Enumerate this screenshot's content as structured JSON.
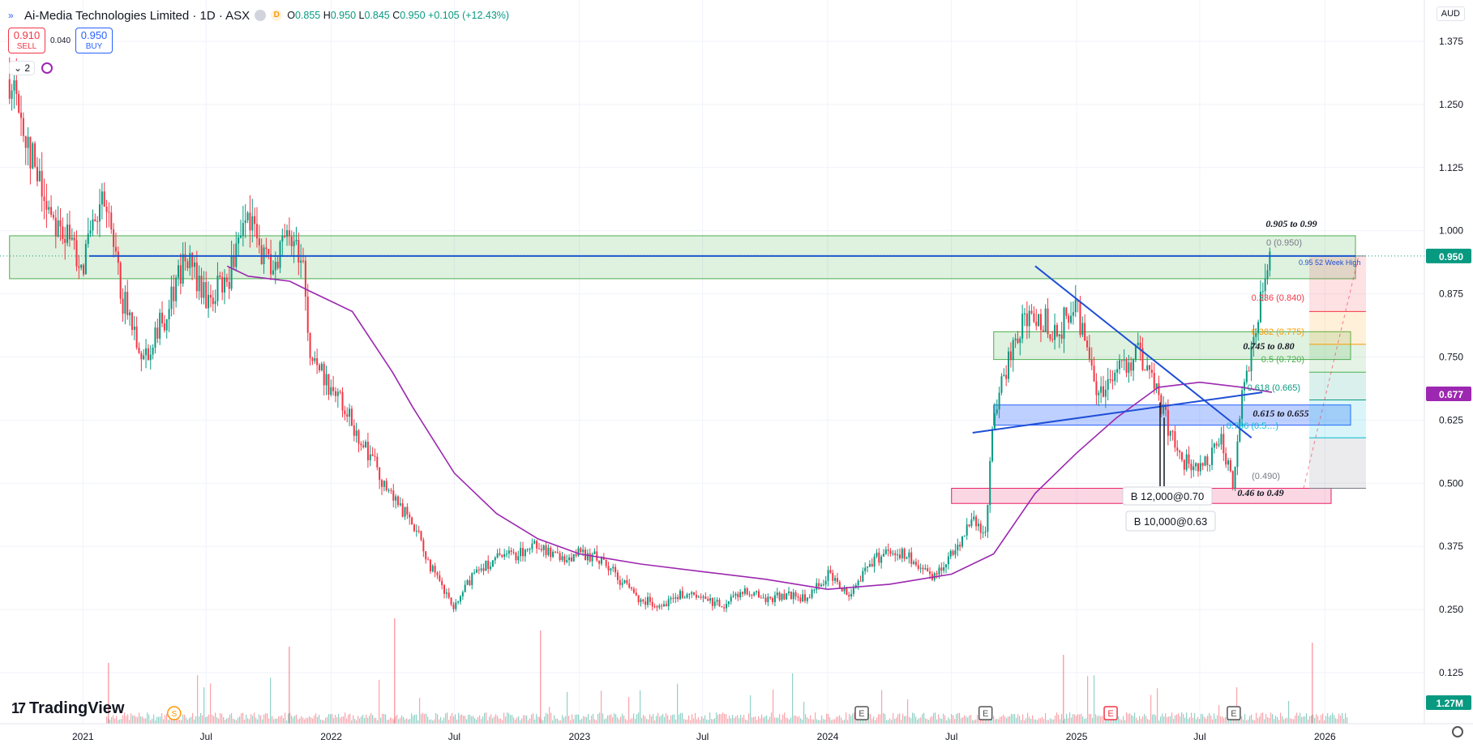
{
  "header": {
    "title": "Ai-Media Technologies Limited · 1D · ASX",
    "d_badge": "D",
    "open_label": "O",
    "open": "0.855",
    "high_label": "H",
    "high": "0.950",
    "low_label": "L",
    "low": "0.845",
    "close_label": "C",
    "close": "0.950",
    "change": "+0.105 (+12.43%)"
  },
  "trade": {
    "sell_price": "0.910",
    "sell_label": "SELL",
    "spread": "0.040",
    "buy_price": "0.950",
    "buy_label": "BUY"
  },
  "indicators": {
    "count": "2"
  },
  "currency": "AUD",
  "logo": "TradingView",
  "colors": {
    "up": "#089981",
    "down": "#f23645",
    "ma": "#9c27b0",
    "line": "#1e4fd6",
    "zone_green": "#4caf50",
    "zone_blue": "#2962ff",
    "zone_pink": "#e91e63"
  },
  "chart_data": {
    "type": "candlestick",
    "symbol": "Ai-Media Technologies Limited",
    "interval": "1D",
    "exchange": "ASX",
    "currency": "AUD",
    "ylim": [
      0.0,
      1.42
    ],
    "y_ticks": [
      "1.375",
      "1.250",
      "1.125",
      "1.000",
      "0.875",
      "0.750",
      "0.625",
      "0.500",
      "0.375",
      "0.250",
      "0.125"
    ],
    "x_ticks": [
      "2021",
      "Jul",
      "2022",
      "Jul",
      "2023",
      "Jul",
      "2024",
      "Jul",
      "2025",
      "Jul",
      "2026"
    ],
    "x_range": [
      "2020-09-01",
      "2026-05-01"
    ],
    "price_path": [
      [
        "2020-09-15",
        1.3
      ],
      [
        "2020-10-01",
        1.23
      ],
      [
        "2020-11-01",
        1.08
      ],
      [
        "2020-12-01",
        1.0
      ],
      [
        "2021-01-01",
        0.94
      ],
      [
        "2021-02-01",
        1.06
      ],
      [
        "2021-03-01",
        0.86
      ],
      [
        "2021-04-01",
        0.75
      ],
      [
        "2021-05-01",
        0.83
      ],
      [
        "2021-06-01",
        0.95
      ],
      [
        "2021-07-01",
        0.86
      ],
      [
        "2021-08-01",
        0.9
      ],
      [
        "2021-09-01",
        1.02
      ],
      [
        "2021-10-01",
        0.93
      ],
      [
        "2021-11-01",
        0.99
      ],
      [
        "2021-11-20",
        0.95
      ],
      [
        "2021-12-01",
        0.75
      ],
      [
        "2022-01-01",
        0.69
      ],
      [
        "2022-02-01",
        0.62
      ],
      [
        "2022-03-01",
        0.55
      ],
      [
        "2022-04-01",
        0.47
      ],
      [
        "2022-05-01",
        0.42
      ],
      [
        "2022-06-01",
        0.32
      ],
      [
        "2022-07-01",
        0.25
      ],
      [
        "2022-08-01",
        0.33
      ],
      [
        "2022-09-01",
        0.35
      ],
      [
        "2022-10-01",
        0.36
      ],
      [
        "2022-11-01",
        0.38
      ],
      [
        "2022-12-01",
        0.35
      ],
      [
        "2023-01-01",
        0.36
      ],
      [
        "2023-02-01",
        0.35
      ],
      [
        "2023-03-01",
        0.31
      ],
      [
        "2023-04-01",
        0.27
      ],
      [
        "2023-05-01",
        0.26
      ],
      [
        "2023-06-01",
        0.28
      ],
      [
        "2023-07-01",
        0.27
      ],
      [
        "2023-08-01",
        0.26
      ],
      [
        "2023-09-01",
        0.29
      ],
      [
        "2023-10-01",
        0.27
      ],
      [
        "2023-11-01",
        0.28
      ],
      [
        "2023-12-01",
        0.27
      ],
      [
        "2024-01-01",
        0.32
      ],
      [
        "2024-02-01",
        0.28
      ],
      [
        "2024-03-01",
        0.34
      ],
      [
        "2024-04-01",
        0.37
      ],
      [
        "2024-05-01",
        0.35
      ],
      [
        "2024-06-01",
        0.31
      ],
      [
        "2024-07-01",
        0.36
      ],
      [
        "2024-08-01",
        0.43
      ],
      [
        "2024-08-20",
        0.4
      ],
      [
        "2024-09-01",
        0.63
      ],
      [
        "2024-10-01",
        0.79
      ],
      [
        "2024-11-01",
        0.84
      ],
      [
        "2024-12-01",
        0.8
      ],
      [
        "2025-01-01",
        0.85
      ],
      [
        "2025-02-01",
        0.68
      ],
      [
        "2025-03-01",
        0.72
      ],
      [
        "2025-04-01",
        0.76
      ],
      [
        "2025-05-01",
        0.67
      ],
      [
        "2025-06-01",
        0.55
      ],
      [
        "2025-07-01",
        0.52
      ],
      [
        "2025-08-01",
        0.58
      ],
      [
        "2025-08-20",
        0.5
      ],
      [
        "2025-09-01",
        0.68
      ],
      [
        "2025-09-20",
        0.8
      ],
      [
        "2025-10-01",
        0.88
      ],
      [
        "2025-10-15",
        0.95
      ]
    ],
    "moving_average": [
      [
        "2021-08-01",
        0.93
      ],
      [
        "2021-09-01",
        0.91
      ],
      [
        "2021-11-01",
        0.9
      ],
      [
        "2021-12-01",
        0.88
      ],
      [
        "2022-01-01",
        0.86
      ],
      [
        "2022-02-01",
        0.84
      ],
      [
        "2022-04-01",
        0.72
      ],
      [
        "2022-05-01",
        0.65
      ],
      [
        "2022-07-01",
        0.52
      ],
      [
        "2022-09-01",
        0.44
      ],
      [
        "2022-11-01",
        0.39
      ],
      [
        "2023-01-01",
        0.36
      ],
      [
        "2023-04-01",
        0.34
      ],
      [
        "2023-07-01",
        0.325
      ],
      [
        "2023-10-01",
        0.31
      ],
      [
        "2024-01-01",
        0.29
      ],
      [
        "2024-04-01",
        0.3
      ],
      [
        "2024-07-01",
        0.32
      ],
      [
        "2024-09-01",
        0.36
      ],
      [
        "2024-11-01",
        0.48
      ],
      [
        "2025-01-01",
        0.56
      ],
      [
        "2025-03-01",
        0.63
      ],
      [
        "2025-05-01",
        0.69
      ],
      [
        "2025-07-01",
        0.7
      ],
      [
        "2025-09-01",
        0.69
      ],
      [
        "2025-10-15",
        0.68
      ]
    ],
    "last_price": 0.95,
    "ma_last": 0.677,
    "volume_last": "1.27M",
    "zones": [
      {
        "from": 0.905,
        "to": 0.99,
        "label": "0.905 to 0.99",
        "start": "2020-09-15",
        "end": "2025-11-01",
        "color": "green"
      },
      {
        "from": 0.745,
        "to": 0.8,
        "label": "0.745 to 0.80",
        "start": "2024-09-01",
        "end": "2025-10-01",
        "color": "green"
      },
      {
        "from": 0.615,
        "to": 0.655,
        "label": "0.615 to 0.655",
        "start": "2024-09-01",
        "end": "2025-10-01",
        "color": "blue"
      },
      {
        "from": 0.46,
        "to": 0.49,
        "label": "0.46 to 0.49",
        "start": "2024-07-01",
        "end": "2025-10-01",
        "color": "pink"
      }
    ],
    "horizontal_line": {
      "value": 0.95,
      "label": "0.95 52 Week High"
    },
    "fibonacci": [
      {
        "level": "0",
        "price": "0.950",
        "color": "#787b86"
      },
      {
        "level": "0.236",
        "price": "0.840",
        "color": "#f23645"
      },
      {
        "level": "0.382",
        "price": "0.775",
        "color": "#ff9800"
      },
      {
        "level": "0.5",
        "price": "0.720",
        "color": "#4caf50"
      },
      {
        "level": "0.618",
        "price": "0.665",
        "color": "#089981"
      },
      {
        "level": "0.786",
        "price": "0.590",
        "color": "#00bcd4"
      },
      {
        "level": "1",
        "price": "0.490",
        "color": "#787b86"
      }
    ],
    "fib_labels": [
      "0 (0.950)",
      "0.236 (0.840)",
      "0.382 (0.775)",
      "0.5 (0.720)",
      "0.618 (0.665)",
      "0.786 (0.5…)",
      "(0.490)"
    ],
    "trend_lines": [
      {
        "from": [
          "2024-11-01",
          0.93
        ],
        "to": [
          "2025-09-15",
          0.59
        ]
      },
      {
        "from": [
          "2024-08-01",
          0.6
        ],
        "to": [
          "2025-10-01",
          0.68
        ]
      }
    ],
    "trades": [
      "B 12,000@0.70",
      "B 10,000@0.63"
    ],
    "events": [
      {
        "date": "2021-05-15",
        "kind": "S"
      },
      {
        "date": "2024-02-20",
        "kind": "E"
      },
      {
        "date": "2024-08-20",
        "kind": "E"
      },
      {
        "date": "2025-02-20",
        "kind": "E"
      },
      {
        "date": "2025-08-20",
        "kind": "E"
      }
    ]
  }
}
